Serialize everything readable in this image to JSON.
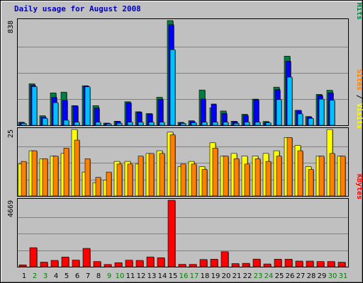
{
  "chart_data": {
    "type": "bar",
    "title": "Daily usage for August 2008",
    "categories": [
      "1",
      "2",
      "3",
      "4",
      "5",
      "6",
      "7",
      "8",
      "9",
      "10",
      "11",
      "12",
      "13",
      "14",
      "15",
      "16",
      "17",
      "18",
      "19",
      "20",
      "21",
      "22",
      "23",
      "24",
      "25",
      "26",
      "27",
      "28",
      "29",
      "30",
      "31"
    ],
    "weekend_days": [
      "2",
      "3",
      "9",
      "10",
      "16",
      "17",
      "23",
      "24",
      "30",
      "31"
    ],
    "panels": [
      {
        "name": "hits_files_pages",
        "max_label": "838",
        "max": 838,
        "side_label": [
          {
            "text": "Pages",
            "color": "#00c0ff"
          },
          {
            "text": " / ",
            "color": "#000000"
          },
          {
            "text": "Files",
            "color": "#0000ff"
          },
          {
            "text": " / ",
            "color": "#000000"
          },
          {
            "text": "Hits",
            "color": "#008040"
          }
        ],
        "series": [
          {
            "name": "Hits",
            "color": "#008040",
            "values": [
              24,
              332,
              76,
              259,
              265,
              157,
              316,
              157,
              17,
              32,
              188,
              108,
              93,
              224,
              838,
              23,
              36,
              282,
              139,
              114,
              32,
              88,
              209,
              30,
              305,
              553,
              119,
              70,
              247,
              280,
              0
            ]
          },
          {
            "name": "Files",
            "color": "#0000ff",
            "values": [
              20,
              320,
              65,
              224,
              200,
              155,
              315,
              138,
              16,
              30,
              181,
              105,
              92,
              207,
              805,
              20,
              30,
              210,
              170,
              95,
              28,
              80,
              205,
              25,
              285,
              513,
              119,
              65,
              240,
              260,
              0
            ]
          },
          {
            "name": "Pages",
            "color": "#00c0ff",
            "values": [
              15,
              309,
              56,
              181,
              40,
              25,
              308,
              25,
              11,
              16,
              25,
              25,
              25,
              25,
              605,
              15,
              20,
              25,
              25,
              25,
              15,
              25,
              25,
              20,
              205,
              385,
              91,
              55,
              209,
              200,
              0
            ]
          }
        ]
      },
      {
        "name": "sites_visits",
        "max_label": "25",
        "max": 25,
        "side_label": [
          {
            "text": "Sites",
            "color": "#ff8000"
          },
          {
            "text": " / ",
            "color": "#000000"
          },
          {
            "text": "Visits",
            "color": "#ffff00"
          }
        ],
        "series": [
          {
            "name": "Visits",
            "color": "#ffff00",
            "values": [
              12,
              17,
              14,
              15,
              16,
              25,
              9,
              5,
              6,
              13,
              13,
              12,
              16,
              17,
              24,
              11,
              13,
              11,
              20,
              15,
              16,
              15,
              15,
              16,
              17,
              22,
              19,
              11,
              15,
              25,
              15
            ]
          },
          {
            "name": "Sites",
            "color": "#ff8000",
            "values": [
              13,
              17,
              14,
              15,
              18,
              21,
              14,
              7,
              9,
              12,
              12,
              15,
              16,
              16,
              23,
              12,
              12,
              10,
              18,
              15,
              14,
              12,
              14,
              13,
              15,
              22,
              17,
              10,
              15,
              16,
              15
            ]
          }
        ]
      },
      {
        "name": "kbytes",
        "max_label": "4669",
        "max": 4669,
        "side_label": [
          {
            "text": "KBytes",
            "color": "#ff0000"
          }
        ],
        "series": [
          {
            "name": "KBytes",
            "color": "#ff0000",
            "values": [
              129,
              1339,
              325,
              446,
              683,
              470,
              1291,
              366,
              162,
              285,
              461,
              446,
              688,
              635,
              4669,
              171,
              166,
              509,
              532,
              1052,
              222,
              242,
              538,
              195,
              532,
              532,
              398,
              398,
              368,
              368,
              319
            ]
          }
        ]
      }
    ]
  }
}
